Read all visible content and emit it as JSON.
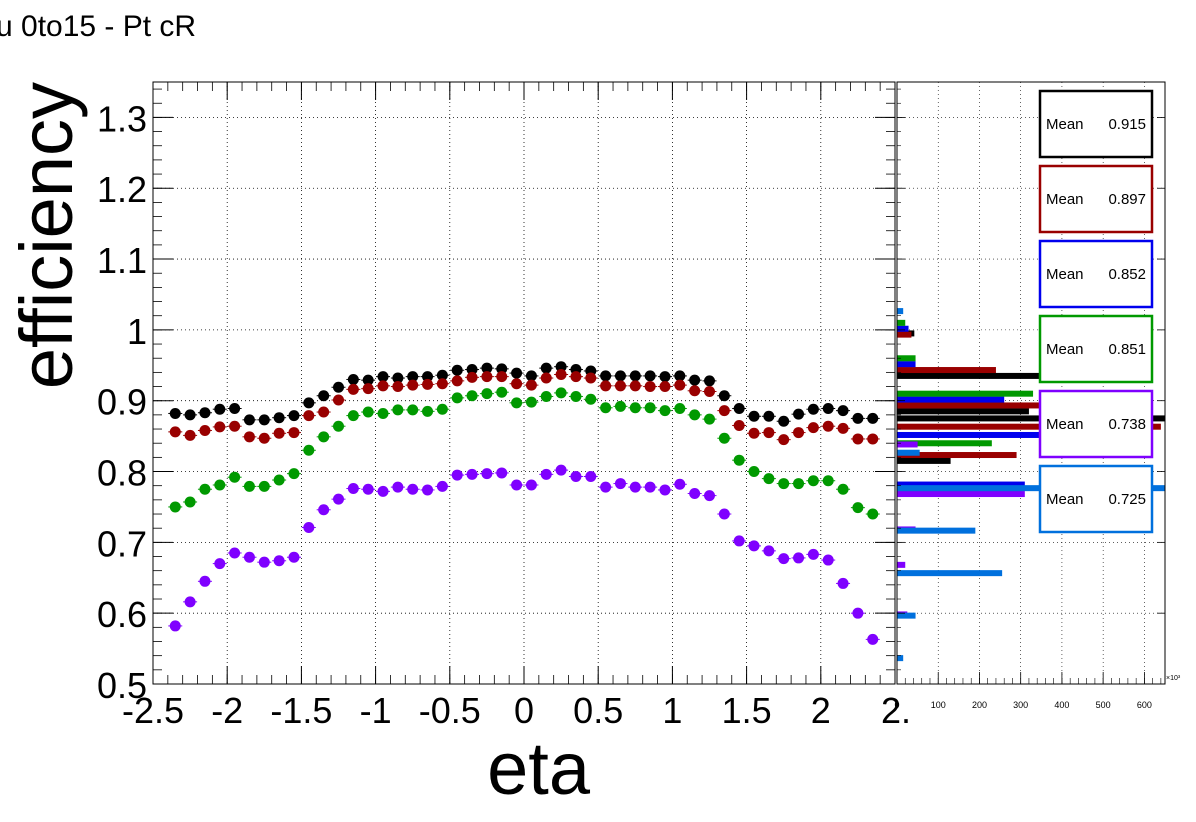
{
  "title": "u 0to15 - Pt cR",
  "colors": {
    "frame": "#000000",
    "grid": "#000000",
    "background": "#ffffff"
  },
  "chart_data": [
    {
      "type": "scatter",
      "xlabel": "eta",
      "ylabel": "efficiency",
      "xlim": [
        -2.5,
        2.5
      ],
      "ylim": [
        0.5,
        1.35
      ],
      "grid": true,
      "x_ticks": [
        "-2.5",
        "-2",
        "-1.5",
        "-1",
        "-0.5",
        "0",
        "0.5",
        "1",
        "1.5",
        "2",
        "2."
      ],
      "y_ticks": [
        "0.5",
        "0.6",
        "0.7",
        "0.8",
        "0.9",
        "1",
        "1.1",
        "1.2",
        "1.3"
      ],
      "x": [
        -2.35,
        -2.25,
        -2.15,
        -2.05,
        -1.95,
        -1.85,
        -1.75,
        -1.65,
        -1.55,
        -1.45,
        -1.35,
        -1.25,
        -1.15,
        -1.05,
        -0.95,
        -0.85,
        -0.75,
        -0.65,
        -0.55,
        -0.45,
        -0.35,
        -0.25,
        -0.15,
        -0.05,
        0.05,
        0.15,
        0.25,
        0.35,
        0.45,
        0.55,
        0.65,
        0.75,
        0.85,
        0.95,
        1.05,
        1.15,
        1.25,
        1.35,
        1.45,
        1.55,
        1.65,
        1.75,
        1.85,
        1.95,
        2.05,
        2.15,
        2.25,
        2.35
      ],
      "series": [
        {
          "color": "#000000",
          "values": [
            0.882,
            0.88,
            0.883,
            0.888,
            0.889,
            0.873,
            0.873,
            0.876,
            0.879,
            0.897,
            0.907,
            0.919,
            0.93,
            0.929,
            0.934,
            0.932,
            0.934,
            0.934,
            0.936,
            0.943,
            0.944,
            0.946,
            0.945,
            0.939,
            0.935,
            0.946,
            0.948,
            0.944,
            0.942,
            0.935,
            0.935,
            0.935,
            0.935,
            0.934,
            0.935,
            0.929,
            0.928,
            0.907,
            0.889,
            0.878,
            0.878,
            0.871,
            0.881,
            0.888,
            0.889,
            0.886,
            0.875,
            0.875
          ]
        },
        {
          "color": "#990000",
          "values": [
            0.856,
            0.851,
            0.858,
            0.863,
            0.864,
            0.849,
            0.847,
            0.854,
            0.855,
            0.879,
            0.884,
            0.901,
            0.916,
            0.917,
            0.921,
            0.92,
            0.922,
            0.923,
            0.924,
            0.928,
            0.933,
            0.934,
            0.934,
            0.924,
            0.922,
            0.932,
            0.937,
            0.934,
            0.932,
            0.921,
            0.921,
            0.921,
            0.92,
            0.92,
            0.922,
            0.914,
            0.913,
            0.886,
            0.865,
            0.854,
            0.855,
            0.845,
            0.855,
            0.862,
            0.864,
            0.861,
            0.846,
            0.846
          ]
        },
        {
          "color": "#009900",
          "values": [
            0.75,
            0.757,
            0.775,
            0.781,
            0.792,
            0.779,
            0.779,
            0.788,
            0.797,
            0.83,
            0.849,
            0.864,
            0.879,
            0.884,
            0.882,
            0.887,
            0.887,
            0.885,
            0.888,
            0.904,
            0.907,
            0.91,
            0.912,
            0.897,
            0.898,
            0.906,
            0.911,
            0.906,
            0.902,
            0.89,
            0.892,
            0.89,
            0.89,
            0.886,
            0.889,
            0.88,
            0.874,
            0.847,
            0.816,
            0.8,
            0.79,
            0.783,
            0.783,
            0.787,
            0.787,
            0.775,
            0.749,
            0.74
          ]
        },
        {
          "color": "#7f00ff",
          "values": [
            0.582,
            0.616,
            0.645,
            0.67,
            0.685,
            0.679,
            0.672,
            0.674,
            0.679,
            0.721,
            0.746,
            0.761,
            0.776,
            0.775,
            0.772,
            0.778,
            0.775,
            0.774,
            0.779,
            0.795,
            0.796,
            0.797,
            0.798,
            0.781,
            0.781,
            0.796,
            0.802,
            0.793,
            0.793,
            0.778,
            0.783,
            0.778,
            0.778,
            0.774,
            0.782,
            0.769,
            0.766,
            0.74,
            0.702,
            0.695,
            0.688,
            0.677,
            0.678,
            0.683,
            0.675,
            0.642,
            0.6,
            0.563
          ]
        }
      ]
    },
    {
      "type": "bar",
      "orientation": "horizontal",
      "x_ticks": [
        "0",
        "100",
        "200",
        "300",
        "400",
        "500",
        "600"
      ],
      "x_exponent": "×10³",
      "xlim": [
        0,
        650
      ],
      "ylim": [
        0.5,
        1.35
      ],
      "grid": true,
      "series": [
        {
          "color": "#000000",
          "mean_label": "Mean",
          "mean": "0.915",
          "bins": [
            [
              0.995,
              42
            ],
            [
              0.935,
              400
            ],
            [
              0.885,
              320
            ],
            [
              0.875,
              650
            ],
            [
              0.815,
              130
            ]
          ]
        },
        {
          "color": "#990000",
          "mean_label": "Mean",
          "mean": "0.897",
          "bins": [
            [
              0.995,
              35
            ],
            [
              0.945,
              240
            ],
            [
              0.895,
              380
            ],
            [
              0.865,
              640
            ],
            [
              0.825,
              290
            ]
          ]
        },
        {
          "color": "#0000ee",
          "mean_label": "Mean",
          "mean": "0.852",
          "bins": [
            [
              1.005,
              28
            ],
            [
              0.955,
              45
            ],
            [
              0.905,
              260
            ],
            [
              0.855,
              370
            ],
            [
              0.785,
              310
            ]
          ]
        },
        {
          "color": "#009900",
          "mean_label": "Mean",
          "mean": "0.851",
          "bins": [
            [
              1.015,
              20
            ],
            [
              0.965,
              45
            ],
            [
              0.915,
              330
            ],
            [
              0.845,
              230
            ],
            [
              0.775,
              300
            ]
          ]
        },
        {
          "color": "#7f00ff",
          "mean_label": "Mean",
          "mean": "0.738",
          "bins": [
            [
              0.845,
              50
            ],
            [
              0.775,
              310
            ],
            [
              0.725,
              45
            ],
            [
              0.675,
              20
            ],
            [
              0.605,
              25
            ]
          ]
        },
        {
          "color": "#0070dd",
          "mean_label": "Mean",
          "mean": "0.725",
          "bins": [
            [
              1.035,
              15
            ],
            [
              0.835,
              55
            ],
            [
              0.785,
              650
            ],
            [
              0.725,
              190
            ],
            [
              0.665,
              255
            ],
            [
              0.605,
              45
            ],
            [
              0.545,
              15
            ]
          ]
        }
      ]
    }
  ]
}
